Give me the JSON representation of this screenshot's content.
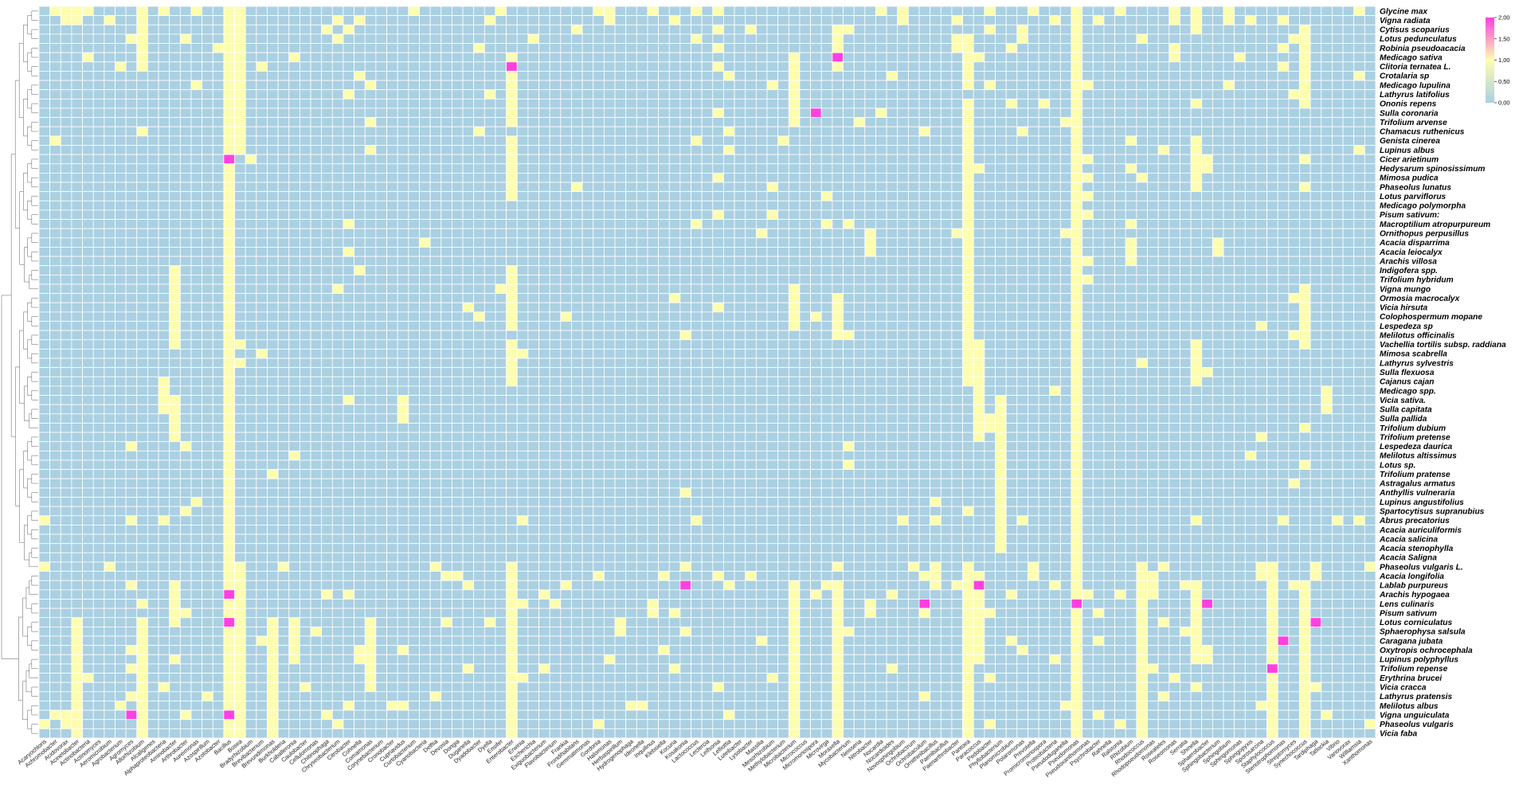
{
  "chart_data": {
    "type": "heatmap",
    "title": "",
    "xlabel": "",
    "ylabel": "",
    "color_scale": {
      "min": 0,
      "max": 2,
      "ticks": [
        "0,00",
        "0,50",
        "1,00",
        "1,50",
        "2,00"
      ],
      "colors": {
        "0": "#aad0e2",
        "1": "#fdfdb0",
        "2": "#ff40e0"
      }
    },
    "dendrogram": "rows",
    "grid": true,
    "rows": [
      "Glycine max",
      "Vigna radiata",
      "Cytisus scoparius",
      "Lotus pedunculatus",
      "Robinia pseudoacacia",
      "Medicago sativa",
      "Clitoria ternatea L.",
      "Crotalaria sp",
      "Medicago lupulina",
      "Lathyrus latifolius",
      "Ononis repens",
      "Sulla coronaria",
      "Trifolium arvense",
      "Chamacus ruthenicus",
      "Genista cinerea",
      "Lupinus albus",
      "Cicer arietinum",
      "Hedysarum spinosissimum",
      "Mimosa pudica",
      "Phaseolus lunatus",
      "Lotus parviflorus",
      "Medicago polymorpha",
      "Pisum sativum:",
      "Macroptilium atropurpureum",
      "Ornithopus perpusillus",
      "Acacia disparrima",
      "Acacia leiocalyx",
      "Arachis villosa",
      "Indigofera spp.",
      "Trifolium hybridum",
      "Vigna mungo",
      "Ormosia macrocalyx",
      "Vicia hirsuta",
      "Colophospermum mopane",
      "Lespedeza sp",
      "Melilotus officinalis",
      "Vachellia tortilis subsp. raddiana",
      "Mimosa scabrella",
      "Lathyrus sylvestris",
      "Sulla flexuosa",
      "Cajanus cajan",
      "Medicago spp.",
      "Vicia sativa.",
      "Sulla capitata",
      "Sulla pallida",
      "Trifolium dubium",
      "Trifolium pretense",
      "Lespedeza daurica",
      "Melilotus altissimus",
      "Lotus sp.",
      "Trifolium pratense",
      "Astragalus armatus",
      "Anthyllis vulneraria",
      "Lupinus angustifolius",
      "Spartocytisus supranubius",
      "Abrus precatorius",
      "Acacia auriculiformis",
      "Acacia salicina",
      "Acacia stenophylla",
      "Acacia Saligna",
      "Phaseolus vulgaris L.",
      "Acacia longifolia",
      "Lablab purpureus",
      "Arachis hypogaea",
      "Lens culinaris",
      "Pisum sativum",
      "Lotus corniculatus",
      "Sphaerophysa salsula",
      "Caragana jubata",
      "Oxytropis ochrocephala",
      "Lupinus polyphyllus",
      "Trifolium repense",
      "Erythrina brucei",
      "Vicia cracca",
      "Lathyrus pratensis",
      "Melilotus albus",
      "Vigna unguiculata",
      "Phaseolus vulgaris",
      "Vicia faba"
    ],
    "columns": [
      "Acaryochloris",
      "Achromobacter",
      "Acidovorax",
      "Acinetobacter",
      "Actinobacteria",
      "Actinomyces",
      "Aeromicrobium",
      "Agrobacterium",
      "Agromyces",
      "Allorhizobium",
      "Alcaligenes",
      "Alphaproteobacteria",
      "Aminobacter",
      "Arthrobacter",
      "Aureimonas",
      "Azospirillum",
      "Azotobacter",
      "Bacillus",
      "Bosea",
      "Bradyrhizobium",
      "Brevibacterium",
      "Brevundimonas",
      "Burkholderia",
      "Caballeronia",
      "Caulobacter",
      "Cellulomonas",
      "Chitinophaga",
      "Chryseobacterium",
      "Citrobacter",
      "Cohnella",
      "Comamonas",
      "Corynebacterium",
      "Cronobacter",
      "Cupriavidus",
      "Curtobacterium",
      "Cyanobacteria",
      "Delftia",
      "Devosia",
      "Dongia",
      "Duganella",
      "Dyadobacter",
      "Dyella",
      "Ensifer",
      "Enterobacter",
      "Erwinia",
      "Escherichia",
      "Exiguobacterium",
      "Flavobacterium",
      "Frankia",
      "Frondihabitans",
      "Gemmatimonas",
      "Gordonia",
      "Halomonas",
      "Herbaspirillum",
      "Hydrogenophaga",
      "Ideonella",
      "Inquilinus",
      "Klebsiella",
      "Kocuria",
      "Kosakonia",
      "Lactococcus",
      "Leclercia",
      "Leifsonia",
      "Lelliottia",
      "Luteibacter",
      "Lysobacter",
      "Massilia",
      "Mesorhizobium",
      "Methylobacterium",
      "Microbacterium",
      "Micrococcus",
      "Micromonospora",
      "Microvirga",
      "Moraxella",
      "Mycobacterium",
      "Neisseria",
      "Nitrobacter",
      "Nocardia",
      "Nocardioides",
      "Novosphingobium",
      "Ochrobactrum",
      "Ochrobaculum",
      "Ornithinibacillus",
      "Paenibacillus",
      "Paenarthrobacter",
      "Pantoea",
      "Paracoccus",
      "Pedobacter",
      "Phyllobacterium",
      "Planomicrobium",
      "Polaromonas",
      "Prevotella",
      "Promicromonospora",
      "Proteobacteria",
      "Pseudoduganella",
      "Pseudomonas",
      "Pseudoxanthomonas",
      "Psychrobacter",
      "Rahnella",
      "Ralstonia",
      "Rhizobium",
      "Rhodococcus",
      "Rhodopseudomonas",
      "Roseateles",
      "Roseomonas",
      "Serratia",
      "Shinella",
      "Sphaerobacter",
      "Sphingobacterium",
      "Sphingobium",
      "Sphingomonas",
      "Sphingopyxis",
      "Sporosarcina",
      "Staphylococcus",
      "Stenotrophomonas",
      "Streptomyces",
      "Synechococcus",
      "Tardiphaga",
      "Tatlockia",
      "Vibrio",
      "Variovorax",
      "Williamsia",
      "Xanthomonas"
    ],
    "highlight": [
      [
        6,
        43
      ],
      [
        5,
        73
      ],
      [
        11,
        71
      ],
      [
        16,
        17
      ],
      [
        62,
        59
      ],
      [
        62,
        86
      ],
      [
        63,
        17
      ],
      [
        64,
        81
      ],
      [
        64,
        95
      ],
      [
        64,
        107
      ],
      [
        66,
        17
      ],
      [
        66,
        117
      ],
      [
        68,
        114
      ],
      [
        71,
        113
      ],
      [
        76,
        8
      ],
      [
        76,
        17
      ]
    ],
    "values_note": "cells not listed in highlight or present columns are 0; present cells encoded in script"
  }
}
